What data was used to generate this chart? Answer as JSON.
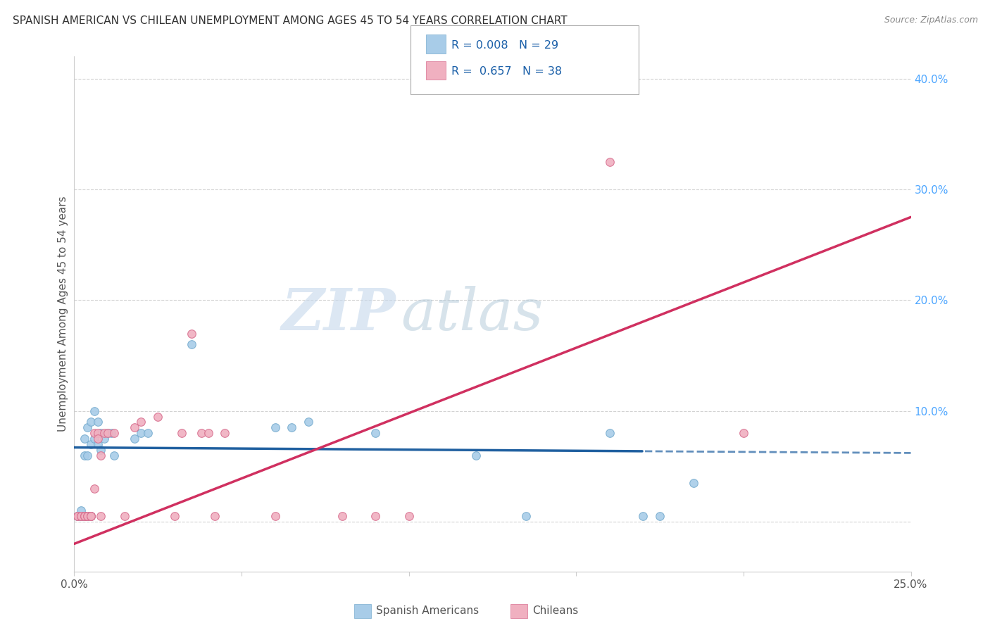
{
  "title": "SPANISH AMERICAN VS CHILEAN UNEMPLOYMENT AMONG AGES 45 TO 54 YEARS CORRELATION CHART",
  "source": "Source: ZipAtlas.com",
  "ylabel": "Unemployment Among Ages 45 to 54 years",
  "x_min": 0.0,
  "x_max": 0.25,
  "y_min": -0.045,
  "y_max": 0.42,
  "x_ticks": [
    0.0,
    0.05,
    0.1,
    0.15,
    0.2,
    0.25
  ],
  "x_tick_labels": [
    "0.0%",
    "",
    "",
    "",
    "",
    "25.0%"
  ],
  "y_ticks_right": [
    0.0,
    0.1,
    0.2,
    0.3,
    0.4
  ],
  "y_tick_labels_right": [
    "",
    "10.0%",
    "20.0%",
    "30.0%",
    "40.0%"
  ],
  "watermark_zip": "ZIP",
  "watermark_atlas": "atlas",
  "sa_color": "#a8cce8",
  "sa_edge_color": "#7aaed0",
  "chilean_color": "#f0b0c0",
  "chilean_edge_color": "#d87090",
  "sa_trend_color": "#2060a0",
  "chilean_trend_color": "#d03060",
  "grid_color": "#c8c8c8",
  "background_color": "#ffffff",
  "title_color": "#333333",
  "axis_label_color": "#555555",
  "right_tick_color": "#4da6ff",
  "marker_size": 70,
  "sa_trend_intercept": 0.067,
  "sa_trend_slope": -0.02,
  "chilean_trend_intercept": -0.02,
  "chilean_trend_slope": 1.18,
  "sa_trend_solid_end": 0.17,
  "spanish_americans_x": [
    0.001,
    0.001,
    0.002,
    0.002,
    0.002,
    0.003,
    0.003,
    0.003,
    0.004,
    0.004,
    0.004,
    0.005,
    0.005,
    0.005,
    0.006,
    0.006,
    0.007,
    0.007,
    0.008,
    0.008,
    0.009,
    0.01,
    0.011,
    0.012,
    0.018,
    0.02,
    0.022,
    0.035,
    0.06,
    0.065,
    0.07,
    0.09,
    0.12,
    0.135,
    0.16,
    0.17,
    0.175,
    0.185
  ],
  "spanish_americans_y": [
    0.005,
    0.005,
    0.005,
    0.005,
    0.01,
    0.005,
    0.06,
    0.075,
    0.005,
    0.06,
    0.085,
    0.005,
    0.07,
    0.09,
    0.075,
    0.1,
    0.07,
    0.09,
    0.065,
    0.08,
    0.075,
    0.08,
    0.08,
    0.06,
    0.075,
    0.08,
    0.08,
    0.16,
    0.085,
    0.085,
    0.09,
    0.08,
    0.06,
    0.005,
    0.08,
    0.005,
    0.005,
    0.035
  ],
  "chileans_x": [
    0.001,
    0.001,
    0.002,
    0.002,
    0.003,
    0.003,
    0.003,
    0.004,
    0.004,
    0.005,
    0.005,
    0.005,
    0.006,
    0.006,
    0.007,
    0.007,
    0.008,
    0.008,
    0.009,
    0.01,
    0.012,
    0.015,
    0.018,
    0.02,
    0.025,
    0.03,
    0.032,
    0.035,
    0.038,
    0.04,
    0.042,
    0.045,
    0.06,
    0.08,
    0.09,
    0.1,
    0.16,
    0.2
  ],
  "chileans_y": [
    0.005,
    0.005,
    0.005,
    0.005,
    0.005,
    0.005,
    0.005,
    0.005,
    0.005,
    0.005,
    0.005,
    0.005,
    0.03,
    0.08,
    0.08,
    0.075,
    0.06,
    0.005,
    0.08,
    0.08,
    0.08,
    0.005,
    0.085,
    0.09,
    0.095,
    0.005,
    0.08,
    0.17,
    0.08,
    0.08,
    0.005,
    0.08,
    0.005,
    0.005,
    0.005,
    0.005,
    0.325,
    0.08
  ]
}
